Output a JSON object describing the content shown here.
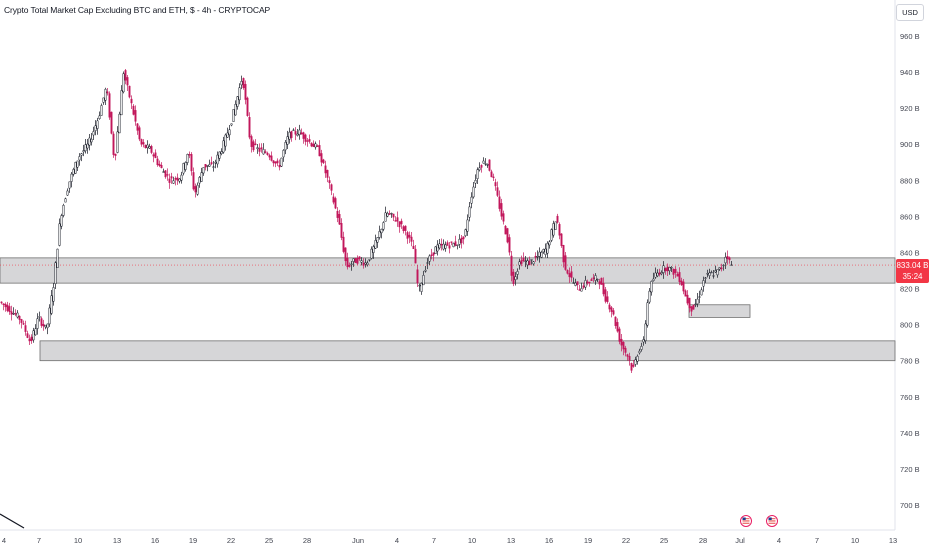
{
  "header": {
    "title": "Crypto Total Market Cap Excluding BTC and ETH, $ - 4h - CRYPTOCAP",
    "currency": "USD"
  },
  "price_tag": {
    "price": "833.04 B",
    "countdown": "35:24"
  },
  "colors": {
    "up": "#131722",
    "down": "#c2185b",
    "zone_fill": "#d6d6d8",
    "zone_border": "#6e6e6e",
    "price_tag": "#f23645",
    "axis_text": "#434651"
  },
  "event_icons": [
    "us-flag-icon",
    "us-flag-icon"
  ],
  "chart_data": {
    "type": "line",
    "title": "Crypto Total Market Cap Excluding BTC and ETH, $ - 4h - CRYPTOCAP",
    "y_unit": "B",
    "ylim": [
      692,
      968
    ],
    "y_ticks": [
      "960 B",
      "940 B",
      "920 B",
      "900 B",
      "880 B",
      "860 B",
      "840 B",
      "820 B",
      "800 B",
      "780 B",
      "760 B",
      "740 B",
      "720 B",
      "700 B"
    ],
    "x_tick_labels": [
      "4",
      "7",
      "10",
      "13",
      "16",
      "19",
      "22",
      "25",
      "28",
      "Jun",
      "4",
      "7",
      "10",
      "13",
      "16",
      "19",
      "22",
      "25",
      "28",
      "Jul",
      "4",
      "7",
      "10",
      "13"
    ],
    "series": [
      {
        "values": [
          [
            0,
            813
          ],
          [
            10,
            809
          ],
          [
            22,
            803
          ],
          [
            32,
            790
          ],
          [
            40,
            804
          ],
          [
            48,
            797
          ],
          [
            55,
            822
          ],
          [
            62,
            860
          ],
          [
            70,
            878
          ],
          [
            80,
            893
          ],
          [
            90,
            900
          ],
          [
            100,
            915
          ],
          [
            108,
            932
          ],
          [
            116,
            890
          ],
          [
            125,
            940
          ],
          [
            133,
            922
          ],
          [
            142,
            900
          ],
          [
            152,
            897
          ],
          [
            162,
            887
          ],
          [
            172,
            880
          ],
          [
            182,
            882
          ],
          [
            190,
            897
          ],
          [
            196,
            872
          ],
          [
            205,
            888
          ],
          [
            215,
            888
          ],
          [
            225,
            900
          ],
          [
            234,
            915
          ],
          [
            244,
            938
          ],
          [
            252,
            900
          ],
          [
            260,
            897
          ],
          [
            270,
            895
          ],
          [
            280,
            887
          ],
          [
            290,
            905
          ],
          [
            300,
            907
          ],
          [
            310,
            902
          ],
          [
            320,
            897
          ],
          [
            330,
            879
          ],
          [
            340,
            858
          ],
          [
            348,
            832
          ],
          [
            358,
            836
          ],
          [
            368,
            834
          ],
          [
            378,
            846
          ],
          [
            388,
            862
          ],
          [
            398,
            858
          ],
          [
            408,
            851
          ],
          [
            415,
            842
          ],
          [
            420,
            818
          ],
          [
            428,
            834
          ],
          [
            438,
            843
          ],
          [
            448,
            844
          ],
          [
            458,
            845
          ],
          [
            466,
            848
          ],
          [
            472,
            870
          ],
          [
            480,
            888
          ],
          [
            488,
            891
          ],
          [
            495,
            880
          ],
          [
            502,
            863
          ],
          [
            510,
            845
          ],
          [
            514,
            823
          ],
          [
            522,
            836
          ],
          [
            530,
            834
          ],
          [
            540,
            838
          ],
          [
            548,
            842
          ],
          [
            558,
            860
          ],
          [
            566,
            833
          ],
          [
            574,
            824
          ],
          [
            580,
            820
          ],
          [
            590,
            824
          ],
          [
            600,
            826
          ],
          [
            606,
            816
          ],
          [
            614,
            807
          ],
          [
            622,
            790
          ],
          [
            630,
            782
          ],
          [
            634,
            774
          ],
          [
            640,
            786
          ],
          [
            645,
            790
          ],
          [
            650,
            818
          ],
          [
            656,
            827
          ],
          [
            662,
            830
          ],
          [
            668,
            832
          ],
          [
            676,
            829
          ],
          [
            682,
            825
          ],
          [
            688,
            814
          ],
          [
            694,
            808
          ],
          [
            700,
            815
          ],
          [
            706,
            826
          ],
          [
            712,
            828
          ],
          [
            718,
            829
          ],
          [
            724,
            832
          ],
          [
            728,
            840
          ],
          [
            732,
            833
          ]
        ]
      }
    ],
    "annotations": [
      {
        "type": "zone",
        "from": 823,
        "to": 837
      },
      {
        "type": "zone",
        "from": 780,
        "to": 791
      },
      {
        "type": "zone",
        "from": 804,
        "to": 811
      }
    ],
    "grid": false,
    "legend": "none"
  }
}
